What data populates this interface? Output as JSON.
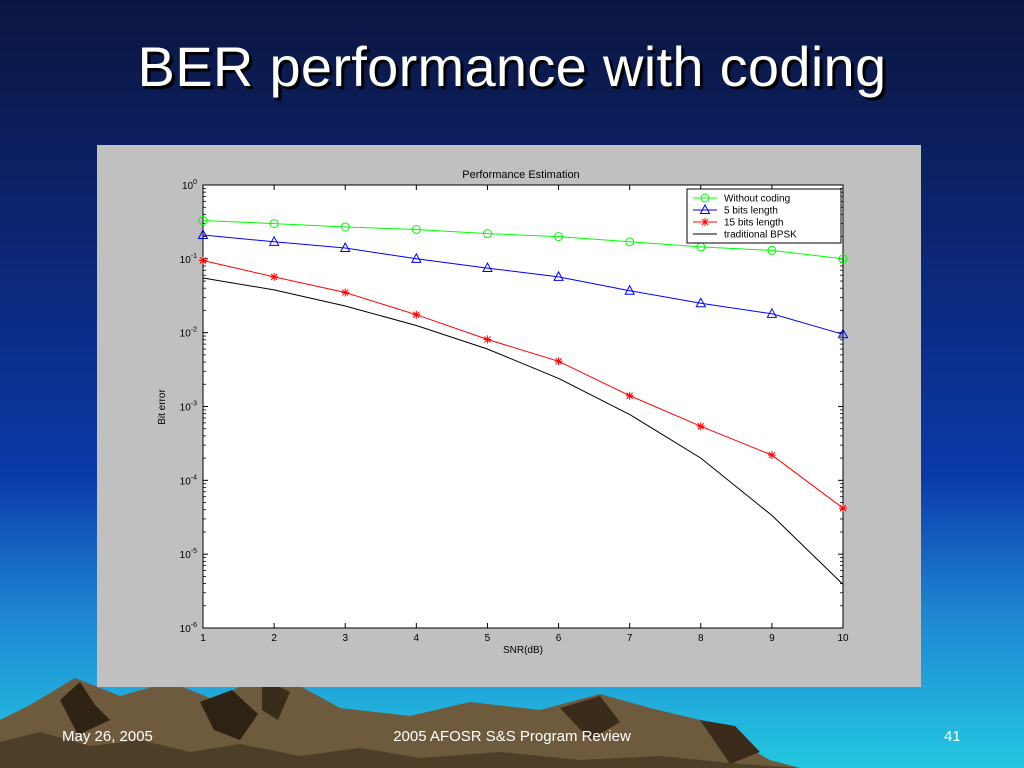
{
  "slide": {
    "title": "BER performance with coding",
    "footer_date": "May 26, 2005",
    "footer_center": "2005 AFOSR S&S Program Review",
    "page_number": "41"
  },
  "chart_data": {
    "type": "line",
    "title": "Performance Estimation",
    "xlabel": "SNR(dB)",
    "ylabel": "Bit error",
    "x": [
      1,
      2,
      3,
      4,
      5,
      6,
      7,
      8,
      9,
      10
    ],
    "xlim": [
      1,
      10
    ],
    "ylim": [
      1e-06,
      1
    ],
    "yscale": "log",
    "x_ticks": [
      "1",
      "2",
      "3",
      "4",
      "5",
      "6",
      "7",
      "8",
      "9",
      "10"
    ],
    "y_ticks": [
      {
        "base": "10",
        "exp": "0"
      },
      {
        "base": "10",
        "exp": "-1"
      },
      {
        "base": "10",
        "exp": "-2"
      },
      {
        "base": "10",
        "exp": "-3"
      },
      {
        "base": "10",
        "exp": "-4"
      },
      {
        "base": "10",
        "exp": "-5"
      },
      {
        "base": "10",
        "exp": "-6"
      }
    ],
    "grid": false,
    "legend": "top-right",
    "series": [
      {
        "name": "Without coding",
        "color": "#00ff00",
        "marker": "circle",
        "values": [
          0.33,
          0.3,
          0.27,
          0.25,
          0.22,
          0.2,
          0.17,
          0.145,
          0.13,
          0.1
        ]
      },
      {
        "name": "5 bits length",
        "color": "#0000ff",
        "marker": "triangle",
        "values": [
          0.21,
          0.17,
          0.14,
          0.1,
          0.075,
          0.057,
          0.037,
          0.025,
          0.018,
          0.0095
        ]
      },
      {
        "name": "15 bits length",
        "color": "#ff0000",
        "marker": "star",
        "values": [
          0.095,
          0.057,
          0.035,
          0.0175,
          0.0081,
          0.0041,
          0.0014,
          0.00054,
          0.00022,
          4.2e-05
        ]
      },
      {
        "name": "traditional BPSK",
        "color": "#000000",
        "marker": "none",
        "values": [
          0.055,
          0.038,
          0.023,
          0.0125,
          0.006,
          0.0024,
          0.00078,
          0.0002,
          3.35e-05,
          3.9e-06
        ]
      }
    ]
  }
}
